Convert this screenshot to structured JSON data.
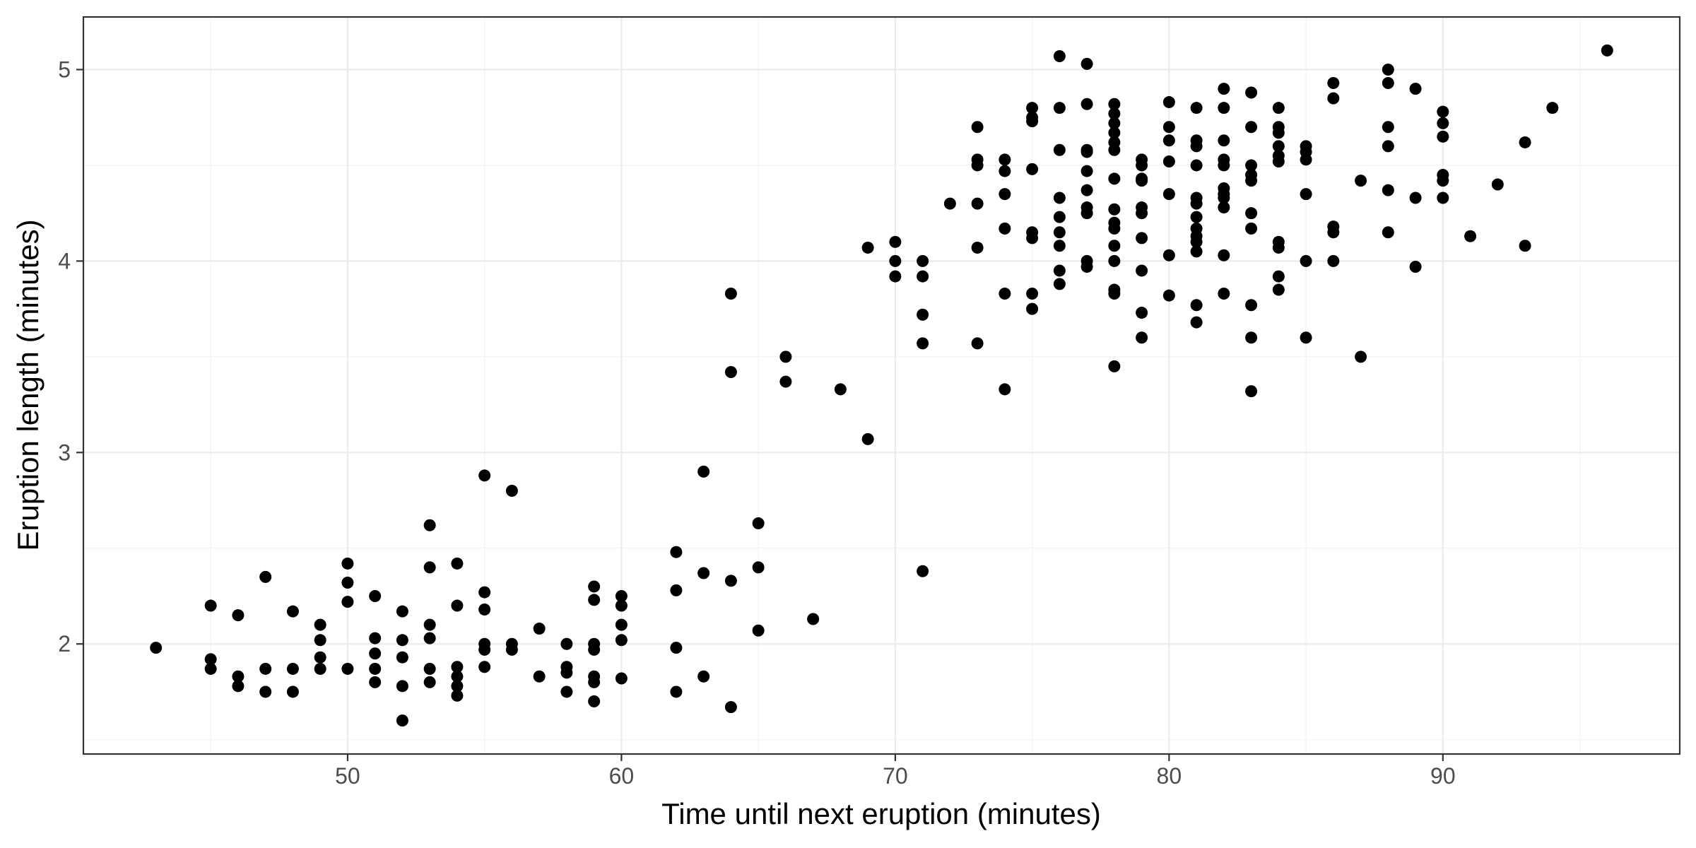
{
  "chart_data": {
    "type": "scatter",
    "title": "",
    "xlabel": "Time until next eruption (minutes)",
    "ylabel": "Eruption length (minutes)",
    "xlim": [
      40.35,
      98.65
    ],
    "ylim": [
      1.425,
      5.275
    ],
    "x_ticks": [
      50,
      60,
      70,
      80,
      90
    ],
    "y_ticks": [
      2,
      3,
      4,
      5
    ],
    "x_tick_labels": [
      "50",
      "60",
      "70",
      "80",
      "90"
    ],
    "y_tick_labels": [
      "2",
      "3",
      "4",
      "5"
    ],
    "grid": true,
    "point_color": "#000000",
    "points": [
      [
        43,
        1.98
      ],
      [
        45,
        2.2
      ],
      [
        45,
        1.92
      ],
      [
        45,
        1.87
      ],
      [
        46,
        2.15
      ],
      [
        46,
        1.83
      ],
      [
        46,
        1.78
      ],
      [
        47,
        2.35
      ],
      [
        47,
        1.87
      ],
      [
        47,
        1.75
      ],
      [
        48,
        2.17
      ],
      [
        48,
        1.87
      ],
      [
        48,
        1.75
      ],
      [
        49,
        2.1
      ],
      [
        49,
        2.02
      ],
      [
        49,
        1.93
      ],
      [
        49,
        1.87
      ],
      [
        50,
        2.42
      ],
      [
        50,
        2.32
      ],
      [
        50,
        2.22
      ],
      [
        50,
        1.87
      ],
      [
        51,
        2.25
      ],
      [
        51,
        2.03
      ],
      [
        51,
        1.95
      ],
      [
        51,
        1.87
      ],
      [
        51,
        1.8
      ],
      [
        52,
        2.17
      ],
      [
        52,
        2.02
      ],
      [
        52,
        1.93
      ],
      [
        52,
        1.78
      ],
      [
        52,
        1.6
      ],
      [
        53,
        2.62
      ],
      [
        53,
        2.4
      ],
      [
        53,
        2.1
      ],
      [
        53,
        2.03
      ],
      [
        53,
        1.87
      ],
      [
        53,
        1.8
      ],
      [
        54,
        2.42
      ],
      [
        54,
        2.2
      ],
      [
        54,
        1.88
      ],
      [
        54,
        1.83
      ],
      [
        54,
        1.78
      ],
      [
        54,
        1.73
      ],
      [
        55,
        2.88
      ],
      [
        55,
        2.27
      ],
      [
        55,
        2.18
      ],
      [
        55,
        2.0
      ],
      [
        55,
        1.97
      ],
      [
        55,
        1.88
      ],
      [
        56,
        2.8
      ],
      [
        56,
        2.0
      ],
      [
        56,
        1.97
      ],
      [
        57,
        2.08
      ],
      [
        57,
        1.83
      ],
      [
        58,
        2.0
      ],
      [
        58,
        1.88
      ],
      [
        58,
        1.85
      ],
      [
        58,
        1.75
      ],
      [
        59,
        2.3
      ],
      [
        59,
        2.23
      ],
      [
        59,
        2.0
      ],
      [
        59,
        1.97
      ],
      [
        59,
        1.83
      ],
      [
        59,
        1.8
      ],
      [
        59,
        1.7
      ],
      [
        60,
        2.25
      ],
      [
        60,
        2.2
      ],
      [
        60,
        2.1
      ],
      [
        60,
        2.02
      ],
      [
        60,
        1.82
      ],
      [
        62,
        2.48
      ],
      [
        62,
        2.28
      ],
      [
        62,
        1.98
      ],
      [
        62,
        1.75
      ],
      [
        63,
        2.9
      ],
      [
        63,
        2.37
      ],
      [
        63,
        1.83
      ],
      [
        64,
        3.83
      ],
      [
        64,
        3.42
      ],
      [
        64,
        2.33
      ],
      [
        64,
        1.67
      ],
      [
        65,
        2.63
      ],
      [
        65,
        2.4
      ],
      [
        65,
        2.07
      ],
      [
        66,
        3.5
      ],
      [
        66,
        3.37
      ],
      [
        67,
        2.13
      ],
      [
        68,
        3.33
      ],
      [
        69,
        4.07
      ],
      [
        69,
        3.07
      ],
      [
        70,
        4.1
      ],
      [
        70,
        4.0
      ],
      [
        70,
        3.92
      ],
      [
        71,
        4.0
      ],
      [
        71,
        3.92
      ],
      [
        71,
        3.72
      ],
      [
        71,
        3.57
      ],
      [
        71,
        2.38
      ],
      [
        72,
        4.3
      ],
      [
        73,
        4.7
      ],
      [
        73,
        4.53
      ],
      [
        73,
        4.5
      ],
      [
        73,
        4.3
      ],
      [
        73,
        4.07
      ],
      [
        73,
        3.57
      ],
      [
        74,
        4.53
      ],
      [
        74,
        4.47
      ],
      [
        74,
        4.35
      ],
      [
        74,
        4.17
      ],
      [
        74,
        3.83
      ],
      [
        74,
        3.33
      ],
      [
        75,
        4.8
      ],
      [
        75,
        4.75
      ],
      [
        75,
        4.73
      ],
      [
        75,
        4.48
      ],
      [
        75,
        4.15
      ],
      [
        75,
        4.12
      ],
      [
        75,
        3.83
      ],
      [
        75,
        3.75
      ],
      [
        76,
        5.07
      ],
      [
        76,
        4.8
      ],
      [
        76,
        4.58
      ],
      [
        76,
        4.33
      ],
      [
        76,
        4.23
      ],
      [
        76,
        4.15
      ],
      [
        76,
        4.08
      ],
      [
        76,
        3.95
      ],
      [
        76,
        3.88
      ],
      [
        77,
        5.03
      ],
      [
        77,
        4.82
      ],
      [
        77,
        4.58
      ],
      [
        77,
        4.57
      ],
      [
        77,
        4.47
      ],
      [
        77,
        4.37
      ],
      [
        77,
        4.28
      ],
      [
        77,
        4.25
      ],
      [
        77,
        4.0
      ],
      [
        77,
        3.97
      ],
      [
        78,
        4.82
      ],
      [
        78,
        4.77
      ],
      [
        78,
        4.72
      ],
      [
        78,
        4.67
      ],
      [
        78,
        4.62
      ],
      [
        78,
        4.58
      ],
      [
        78,
        4.43
      ],
      [
        78,
        4.27
      ],
      [
        78,
        4.2
      ],
      [
        78,
        4.17
      ],
      [
        78,
        4.08
      ],
      [
        78,
        4.0
      ],
      [
        78,
        3.85
      ],
      [
        78,
        3.83
      ],
      [
        78,
        3.45
      ],
      [
        79,
        4.53
      ],
      [
        79,
        4.5
      ],
      [
        79,
        4.43
      ],
      [
        79,
        4.42
      ],
      [
        79,
        4.28
      ],
      [
        79,
        4.25
      ],
      [
        79,
        4.12
      ],
      [
        79,
        3.95
      ],
      [
        79,
        3.73
      ],
      [
        79,
        3.6
      ],
      [
        80,
        4.83
      ],
      [
        80,
        4.7
      ],
      [
        80,
        4.63
      ],
      [
        80,
        4.52
      ],
      [
        80,
        4.35
      ],
      [
        80,
        4.03
      ],
      [
        80,
        3.82
      ],
      [
        81,
        4.8
      ],
      [
        81,
        4.63
      ],
      [
        81,
        4.6
      ],
      [
        81,
        4.5
      ],
      [
        81,
        4.33
      ],
      [
        81,
        4.3
      ],
      [
        81,
        4.23
      ],
      [
        81,
        4.17
      ],
      [
        81,
        4.13
      ],
      [
        81,
        4.1
      ],
      [
        81,
        4.05
      ],
      [
        81,
        3.77
      ],
      [
        81,
        3.68
      ],
      [
        82,
        4.9
      ],
      [
        82,
        4.8
      ],
      [
        82,
        4.63
      ],
      [
        82,
        4.53
      ],
      [
        82,
        4.5
      ],
      [
        82,
        4.38
      ],
      [
        82,
        4.35
      ],
      [
        82,
        4.33
      ],
      [
        82,
        4.28
      ],
      [
        82,
        4.03
      ],
      [
        82,
        3.83
      ],
      [
        83,
        4.88
      ],
      [
        83,
        4.7
      ],
      [
        83,
        4.5
      ],
      [
        83,
        4.45
      ],
      [
        83,
        4.42
      ],
      [
        83,
        4.25
      ],
      [
        83,
        4.17
      ],
      [
        83,
        3.77
      ],
      [
        83,
        3.6
      ],
      [
        83,
        3.32
      ],
      [
        84,
        4.8
      ],
      [
        84,
        4.7
      ],
      [
        84,
        4.67
      ],
      [
        84,
        4.6
      ],
      [
        84,
        4.55
      ],
      [
        84,
        4.52
      ],
      [
        84,
        4.1
      ],
      [
        84,
        4.07
      ],
      [
        84,
        3.92
      ],
      [
        84,
        3.85
      ],
      [
        85,
        4.6
      ],
      [
        85,
        4.57
      ],
      [
        85,
        4.53
      ],
      [
        85,
        4.35
      ],
      [
        85,
        4.0
      ],
      [
        85,
        3.6
      ],
      [
        86,
        4.93
      ],
      [
        86,
        4.85
      ],
      [
        86,
        4.18
      ],
      [
        86,
        4.15
      ],
      [
        86,
        4.0
      ],
      [
        87,
        4.42
      ],
      [
        87,
        3.5
      ],
      [
        88,
        5.0
      ],
      [
        88,
        4.93
      ],
      [
        88,
        4.7
      ],
      [
        88,
        4.6
      ],
      [
        88,
        4.37
      ],
      [
        88,
        4.15
      ],
      [
        89,
        4.9
      ],
      [
        89,
        4.33
      ],
      [
        89,
        3.97
      ],
      [
        90,
        4.78
      ],
      [
        90,
        4.72
      ],
      [
        90,
        4.65
      ],
      [
        90,
        4.45
      ],
      [
        90,
        4.42
      ],
      [
        90,
        4.33
      ],
      [
        91,
        4.13
      ],
      [
        92,
        4.4
      ],
      [
        93,
        4.62
      ],
      [
        93,
        4.08
      ],
      [
        94,
        4.8
      ],
      [
        96,
        5.1
      ]
    ]
  }
}
